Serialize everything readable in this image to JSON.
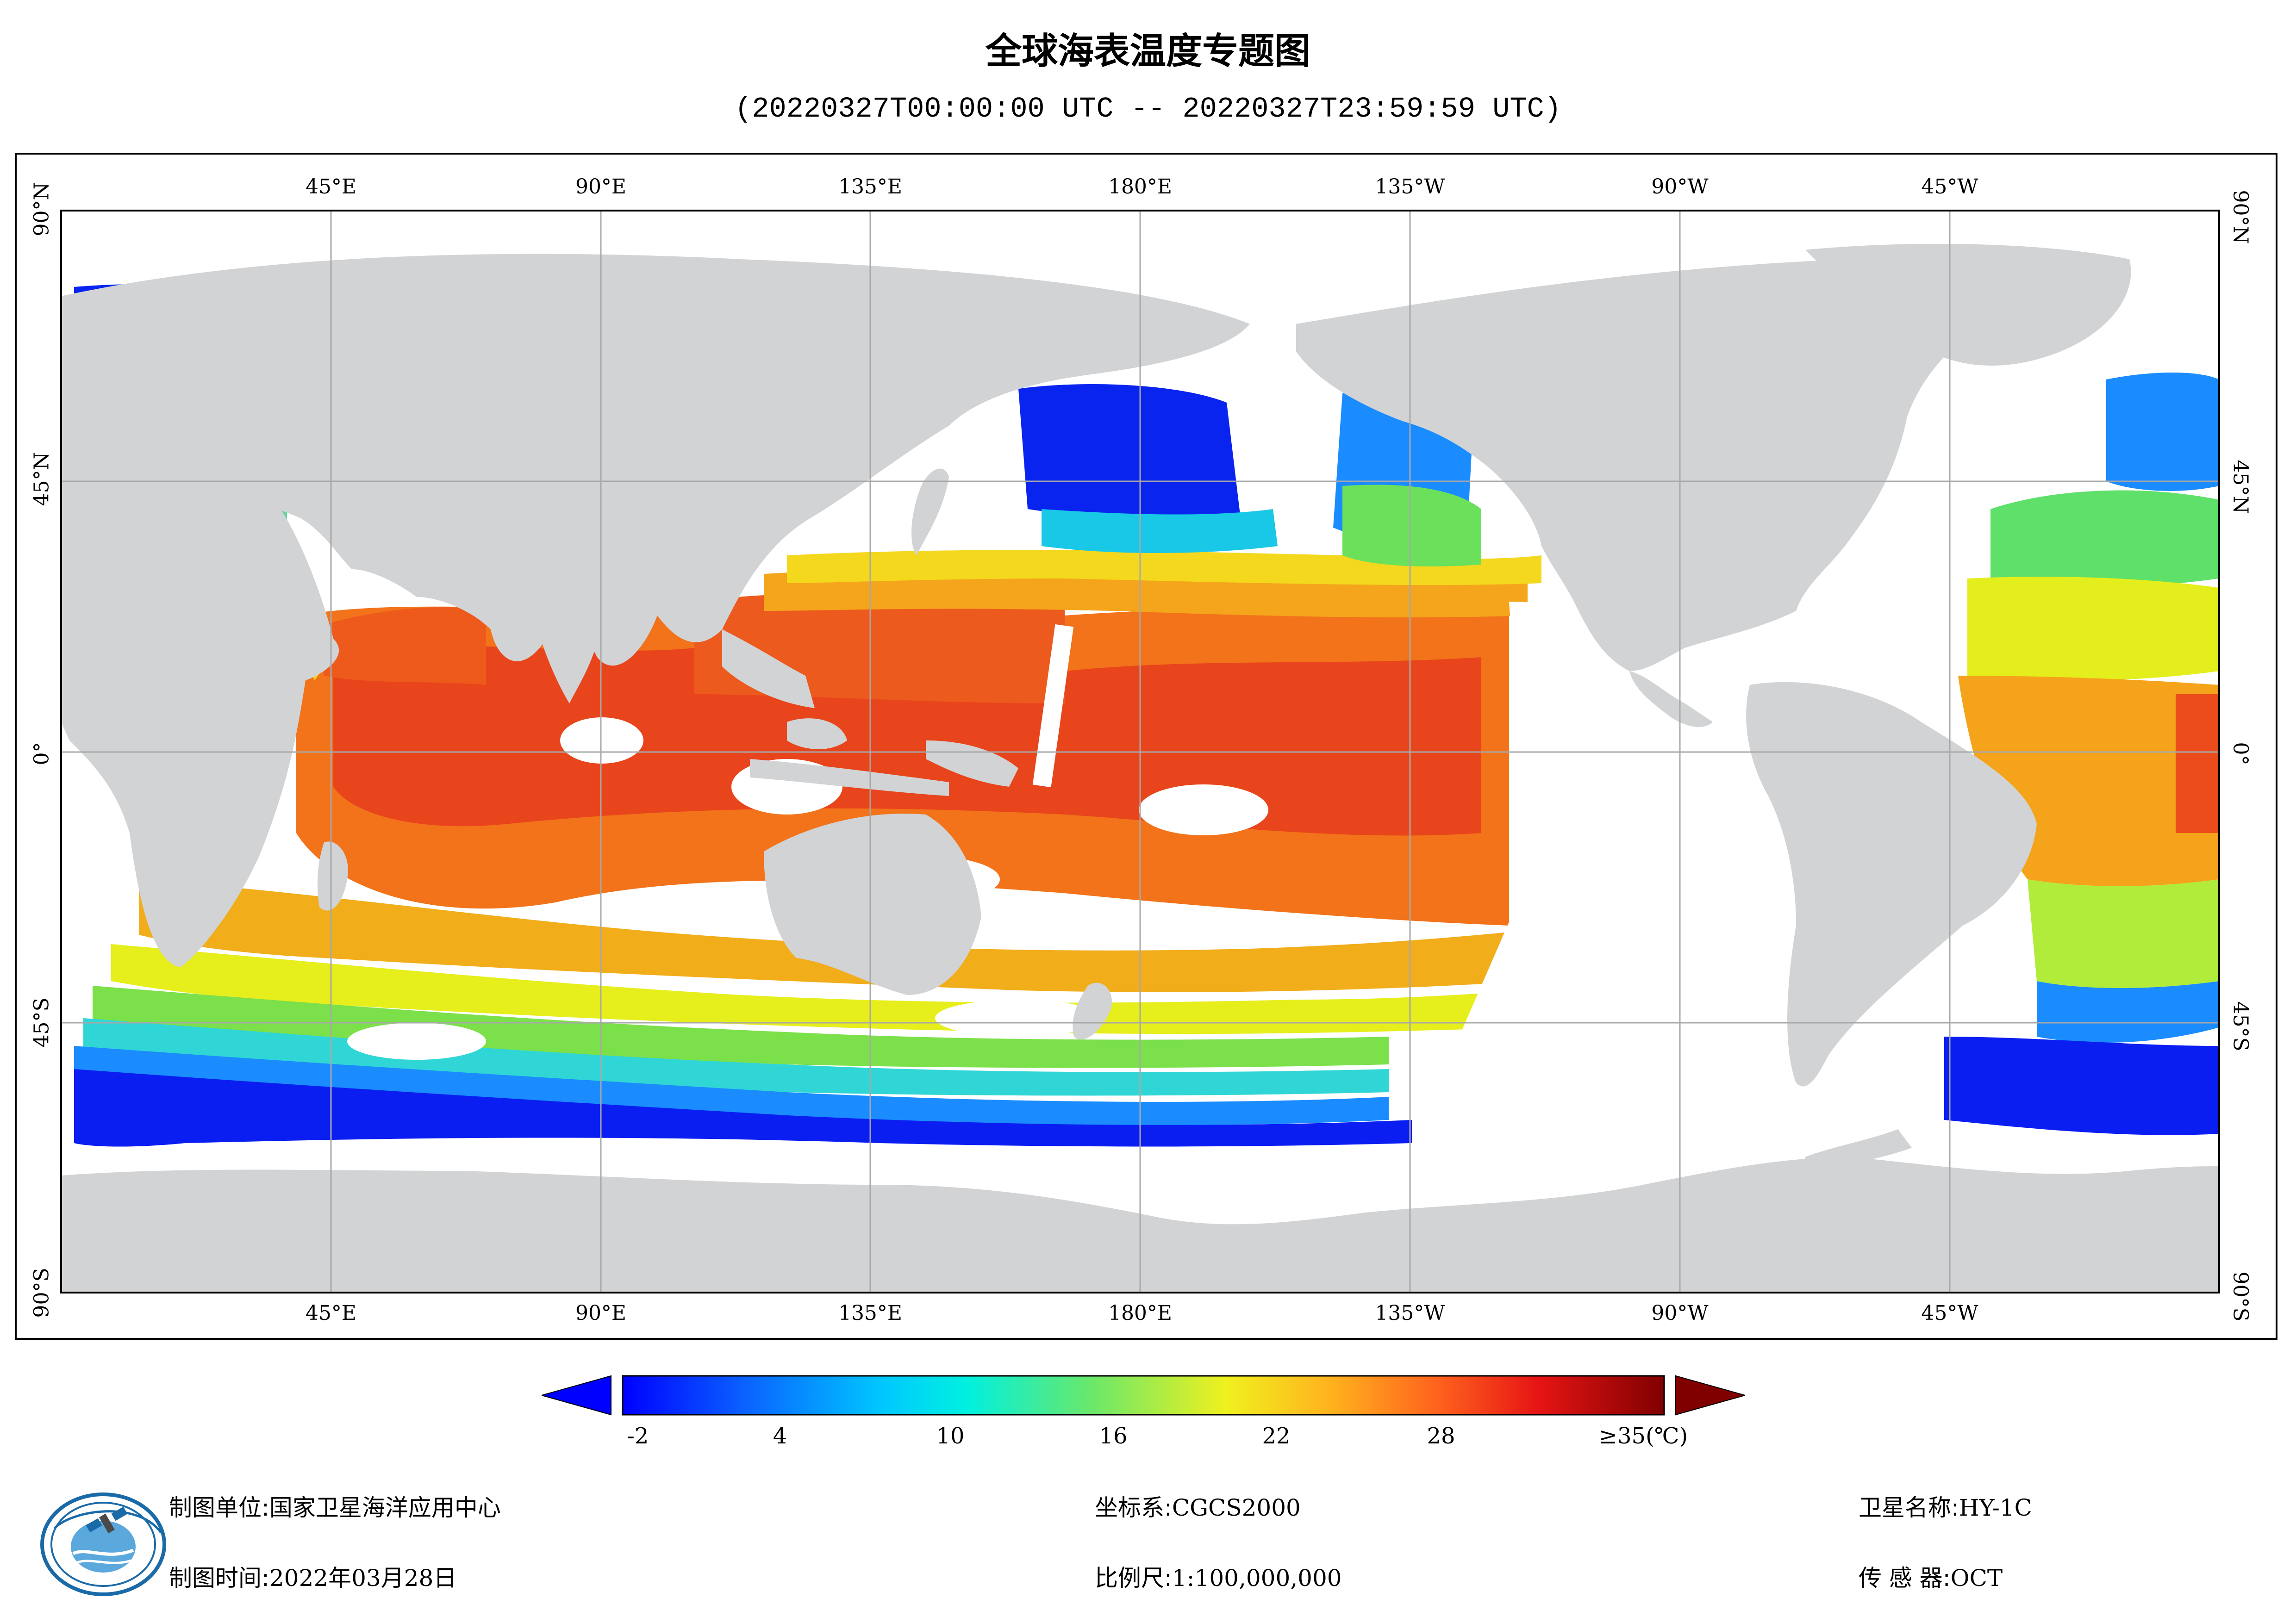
{
  "header": {
    "title": "全球海表温度专题图",
    "time_range": "(20220327T00:00:00 UTC -- 20220327T23:59:59 UTC)"
  },
  "map": {
    "lon_ticks": [
      "45°E",
      "90°E",
      "135°E",
      "180°E",
      "135°W",
      "90°W",
      "45°W"
    ],
    "lat_ticks": [
      "90°N",
      "45°N",
      "0°",
      "45°S",
      "90°S"
    ],
    "colors": {
      "land": "#d2d3d5",
      "no_data": "#ffffff",
      "grid": "#a8a8a8"
    }
  },
  "colorbar": {
    "labels": [
      "-2",
      "4",
      "10",
      "16",
      "22",
      "28",
      "≥35(℃)"
    ],
    "min_color": "#0000ff",
    "max_color": "#800000"
  },
  "footer": {
    "unit_label": "制图单位:",
    "unit_value": "国家卫星海洋应用中心",
    "time_label": "制图时间:",
    "time_value": "2022年03月28日",
    "crs_label": "坐标系:",
    "crs_value": "CGCS2000",
    "scale_label": "比例尺:",
    "scale_value": "1:100,000,000",
    "satellite_label": "卫星名称:",
    "satellite_value": "HY-1C",
    "sensor_label": "传 感 器:",
    "sensor_value": "OCT"
  },
  "logo": {
    "icon": "nsoas-satellite-logo-icon"
  }
}
